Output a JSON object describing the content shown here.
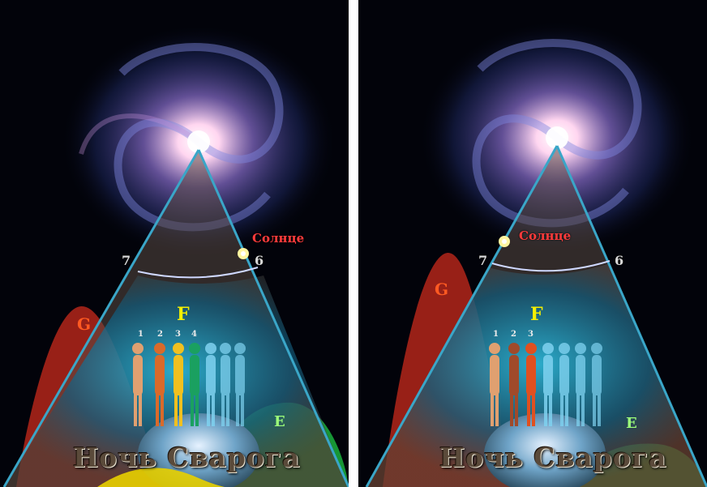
{
  "panels": [
    {
      "sun_label": "Солнце",
      "zones": {
        "g": "G",
        "f": "F",
        "e": "E"
      },
      "numbers": {
        "left": "7",
        "right": "6"
      },
      "figure_numbers": [
        "1",
        "2",
        "3",
        "4"
      ],
      "title": "Ночь Сварога"
    },
    {
      "sun_label": "Солнце",
      "zones": {
        "g": "G",
        "f": "F",
        "e": "E"
      },
      "numbers": {
        "left": "7",
        "right": "6"
      },
      "figure_numbers": [
        "1",
        "2",
        "3"
      ],
      "title": "Ночь Сварога"
    }
  ],
  "colors": {
    "space": "#02030a",
    "cone_border": "#3aa6c8",
    "zone_g": "#b3261a",
    "zone_f": "#12a0c8",
    "zone_e": "#1aa63a",
    "sun_label": "#ff3b3b"
  }
}
